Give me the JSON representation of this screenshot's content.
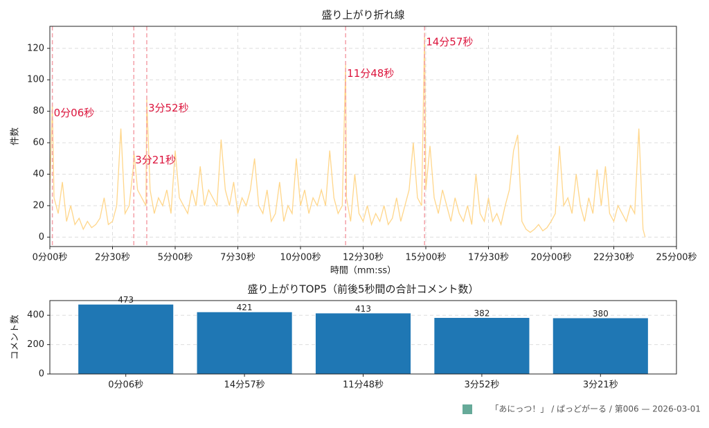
{
  "chart_data": [
    {
      "type": "line",
      "title": "盛り上がり折れ線",
      "xlabel": "時間（mm:ss）",
      "ylabel": "件数",
      "x": [
        0,
        6,
        10,
        20,
        30,
        40,
        50,
        60,
        70,
        80,
        90,
        100,
        110,
        120,
        130,
        140,
        150,
        160,
        170,
        180,
        190,
        200,
        201,
        210,
        220,
        230,
        232,
        240,
        250,
        260,
        270,
        280,
        290,
        300,
        310,
        320,
        330,
        340,
        350,
        360,
        370,
        380,
        390,
        400,
        410,
        420,
        430,
        440,
        450,
        460,
        470,
        480,
        490,
        500,
        510,
        520,
        530,
        540,
        550,
        560,
        570,
        580,
        590,
        600,
        610,
        620,
        630,
        640,
        650,
        660,
        670,
        680,
        690,
        700,
        708,
        710,
        720,
        730,
        740,
        750,
        760,
        770,
        780,
        790,
        800,
        810,
        820,
        830,
        840,
        850,
        860,
        870,
        880,
        890,
        897,
        900,
        910,
        920,
        930,
        940,
        950,
        960,
        970,
        980,
        990,
        1000,
        1010,
        1020,
        1030,
        1040,
        1050,
        1060,
        1070,
        1080,
        1090,
        1100,
        1110,
        1120,
        1130,
        1140,
        1150,
        1160,
        1170,
        1180,
        1190,
        1200,
        1210,
        1220,
        1230,
        1240,
        1250,
        1260,
        1270,
        1280,
        1290,
        1300,
        1310,
        1320,
        1330,
        1340,
        1350,
        1360,
        1370,
        1380,
        1390,
        1400,
        1410,
        1420,
        1425
      ],
      "series": [
        {
          "name": "件数",
          "color": "#ffd68a",
          "values": [
            30,
            85,
            25,
            15,
            35,
            10,
            20,
            8,
            12,
            5,
            10,
            6,
            8,
            12,
            25,
            8,
            10,
            20,
            69,
            15,
            20,
            45,
            55,
            30,
            25,
            20,
            88,
            30,
            15,
            25,
            20,
            30,
            15,
            55,
            25,
            20,
            15,
            30,
            20,
            45,
            20,
            30,
            25,
            20,
            62,
            30,
            20,
            35,
            15,
            25,
            20,
            30,
            50,
            20,
            15,
            30,
            10,
            15,
            35,
            10,
            20,
            15,
            50,
            20,
            30,
            15,
            25,
            20,
            30,
            20,
            55,
            25,
            15,
            20,
            110,
            25,
            10,
            40,
            15,
            10,
            20,
            8,
            15,
            10,
            20,
            8,
            12,
            25,
            10,
            20,
            30,
            60,
            25,
            20,
            130,
            30,
            58,
            25,
            15,
            30,
            20,
            10,
            25,
            15,
            10,
            20,
            8,
            40,
            15,
            10,
            25,
            10,
            15,
            8,
            20,
            30,
            55,
            65,
            10,
            5,
            3,
            5,
            8,
            4,
            6,
            10,
            15,
            58,
            20,
            25,
            15,
            40,
            20,
            10,
            25,
            15,
            43,
            20,
            45,
            15,
            10,
            20,
            15,
            10,
            20,
            15,
            69,
            5,
            0
          ]
        }
      ],
      "annotations": [
        {
          "x": 6,
          "label": "0分06秒"
        },
        {
          "x": 201,
          "label": "3分21秒"
        },
        {
          "x": 232,
          "label": "3分52秒"
        },
        {
          "x": 708,
          "label": "11分48秒"
        },
        {
          "x": 897,
          "label": "14分57秒"
        }
      ],
      "xlim": [
        0,
        1500
      ],
      "ylim": [
        -6,
        134
      ],
      "xticks": [
        {
          "value": 0,
          "label": "0分00秒"
        },
        {
          "value": 150,
          "label": "2分30秒"
        },
        {
          "value": 300,
          "label": "5分00秒"
        },
        {
          "value": 450,
          "label": "7分30秒"
        },
        {
          "value": 600,
          "label": "10分00秒"
        },
        {
          "value": 750,
          "label": "12分30秒"
        },
        {
          "value": 900,
          "label": "15分00秒"
        },
        {
          "value": 1050,
          "label": "17分30秒"
        },
        {
          "value": 1200,
          "label": "20分00秒"
        },
        {
          "value": 1350,
          "label": "22分30秒"
        },
        {
          "value": 1500,
          "label": "25分00秒"
        }
      ],
      "yticks": [
        0,
        20,
        40,
        60,
        80,
        100,
        120
      ],
      "grid": true
    },
    {
      "type": "bar",
      "title": "盛り上がりTOP5（前後5秒間の合計コメント数）",
      "ylabel": "コメント数",
      "categories": [
        "0分06秒",
        "14分57秒",
        "11分48秒",
        "3分52秒",
        "3分21秒"
      ],
      "values": [
        473,
        421,
        413,
        382,
        380
      ],
      "color": "#1f77b4",
      "ylim": [
        0,
        500
      ],
      "yticks": [
        0,
        200,
        400
      ],
      "grid": true
    }
  ],
  "footer": "「あにっつ！」 / ぱっどがーる / 第006 — 2026-03-01"
}
